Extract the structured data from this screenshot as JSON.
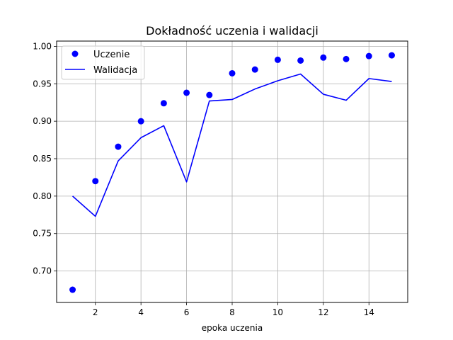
{
  "chart_data": {
    "type": "line",
    "title": "Dokładność uczenia i walidacji",
    "xlabel": "epoka uczenia",
    "ylabel": "",
    "xlim": [
      0.3,
      15.7
    ],
    "ylim": [
      0.658,
      1.007
    ],
    "x_ticks": [
      2,
      4,
      6,
      8,
      10,
      12,
      14
    ],
    "y_ticks": [
      0.7,
      0.75,
      0.8,
      0.85,
      0.9,
      0.95,
      1.0
    ],
    "x_tick_labels": [
      "2",
      "4",
      "6",
      "8",
      "10",
      "12",
      "14"
    ],
    "y_tick_labels": [
      "0.70",
      "0.75",
      "0.80",
      "0.85",
      "0.90",
      "0.95",
      "1.00"
    ],
    "grid": true,
    "legend_position": "top-left",
    "x": [
      1,
      2,
      3,
      4,
      5,
      6,
      7,
      8,
      9,
      10,
      11,
      12,
      13,
      14,
      15
    ],
    "series": [
      {
        "name": "Uczenie",
        "style": "markers",
        "color": "#0000ff",
        "values": [
          0.675,
          0.82,
          0.866,
          0.9,
          0.924,
          0.938,
          0.935,
          0.964,
          0.969,
          0.982,
          0.981,
          0.985,
          0.983,
          0.987,
          0.988
        ]
      },
      {
        "name": "Walidacja",
        "style": "line",
        "color": "#0000ff",
        "values": [
          0.8,
          0.773,
          0.847,
          0.878,
          0.894,
          0.819,
          0.927,
          0.929,
          0.943,
          0.954,
          0.963,
          0.936,
          0.928,
          0.957,
          0.953
        ]
      }
    ]
  }
}
